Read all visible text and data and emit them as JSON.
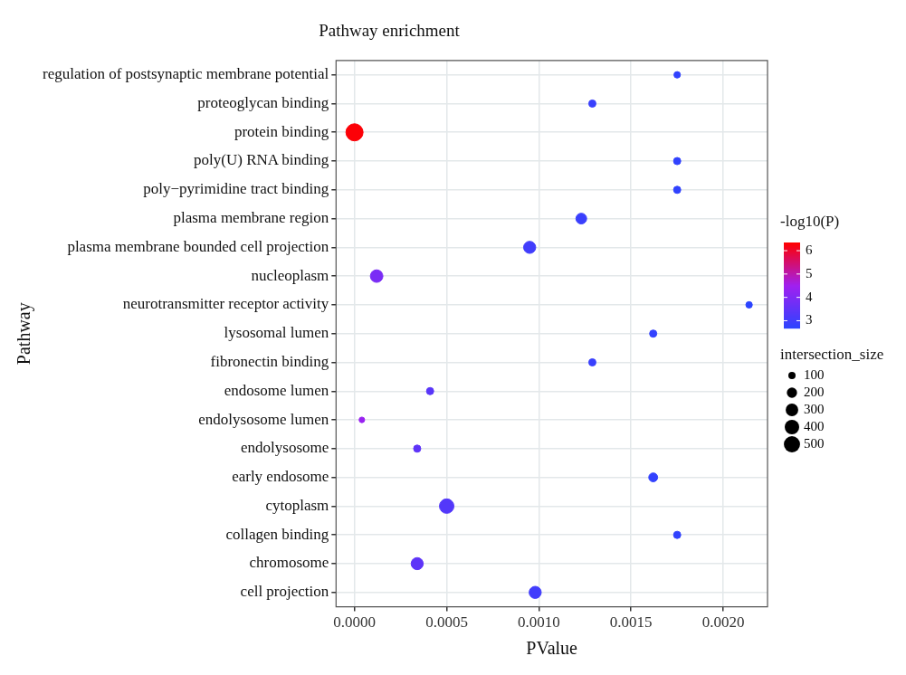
{
  "chart_data": {
    "type": "bubble",
    "title": "Pathway enrichment",
    "xlabel": "PValue",
    "ylabel": "Pathway",
    "orientation": "horizontal",
    "categories": [
      "regulation of postsynaptic membrane potential",
      "proteoglycan binding",
      "protein binding",
      "poly(U) RNA binding",
      "poly−pyrimidine tract binding",
      "plasma membrane region",
      "plasma membrane bounded cell projection",
      "nucleoplasm",
      "neurotransmitter receptor activity",
      "lysosomal lumen",
      "fibronectin binding",
      "endosome lumen",
      "endolysosome lumen",
      "endolysosome",
      "early endosome",
      "cytoplasm",
      "collagen binding",
      "chromosome",
      "cell projection"
    ],
    "values": [
      0.00175,
      0.00129,
      0.0,
      0.00175,
      0.00175,
      0.00123,
      0.00095,
      0.00012,
      0.00214,
      0.00162,
      0.00129,
      0.00041,
      4e-05,
      0.00034,
      0.00162,
      0.0005,
      0.00175,
      0.00034,
      0.00098
    ],
    "cvalues": [
      2.76,
      2.89,
      6.3,
      2.76,
      2.76,
      2.91,
      3.02,
      3.92,
      2.67,
      2.79,
      2.89,
      3.39,
      4.4,
      3.47,
      2.79,
      3.3,
      2.76,
      3.47,
      3.01
    ],
    "sizes": [
      80,
      100,
      560,
      100,
      100,
      220,
      280,
      300,
      80,
      100,
      100,
      100,
      60,
      100,
      150,
      400,
      100,
      280,
      280
    ],
    "size_legend": [
      100,
      200,
      300,
      400,
      500
    ],
    "legend_title": "intersection_size",
    "clabel": "-log10(P)",
    "clim": [
      2.67,
      6.35
    ],
    "cticks": [
      3,
      4,
      5,
      6
    ],
    "xlim": [
      -0.0001,
      0.00224
    ],
    "xticks": [
      {
        "value": 0,
        "label": "0.0000"
      },
      {
        "value": 0.0005,
        "label": "0.0005"
      },
      {
        "value": 0.001,
        "label": "0.0010"
      },
      {
        "value": 0.0015,
        "label": "0.0015"
      },
      {
        "value": 0.002,
        "label": "0.0020"
      }
    ],
    "grid": true
  }
}
